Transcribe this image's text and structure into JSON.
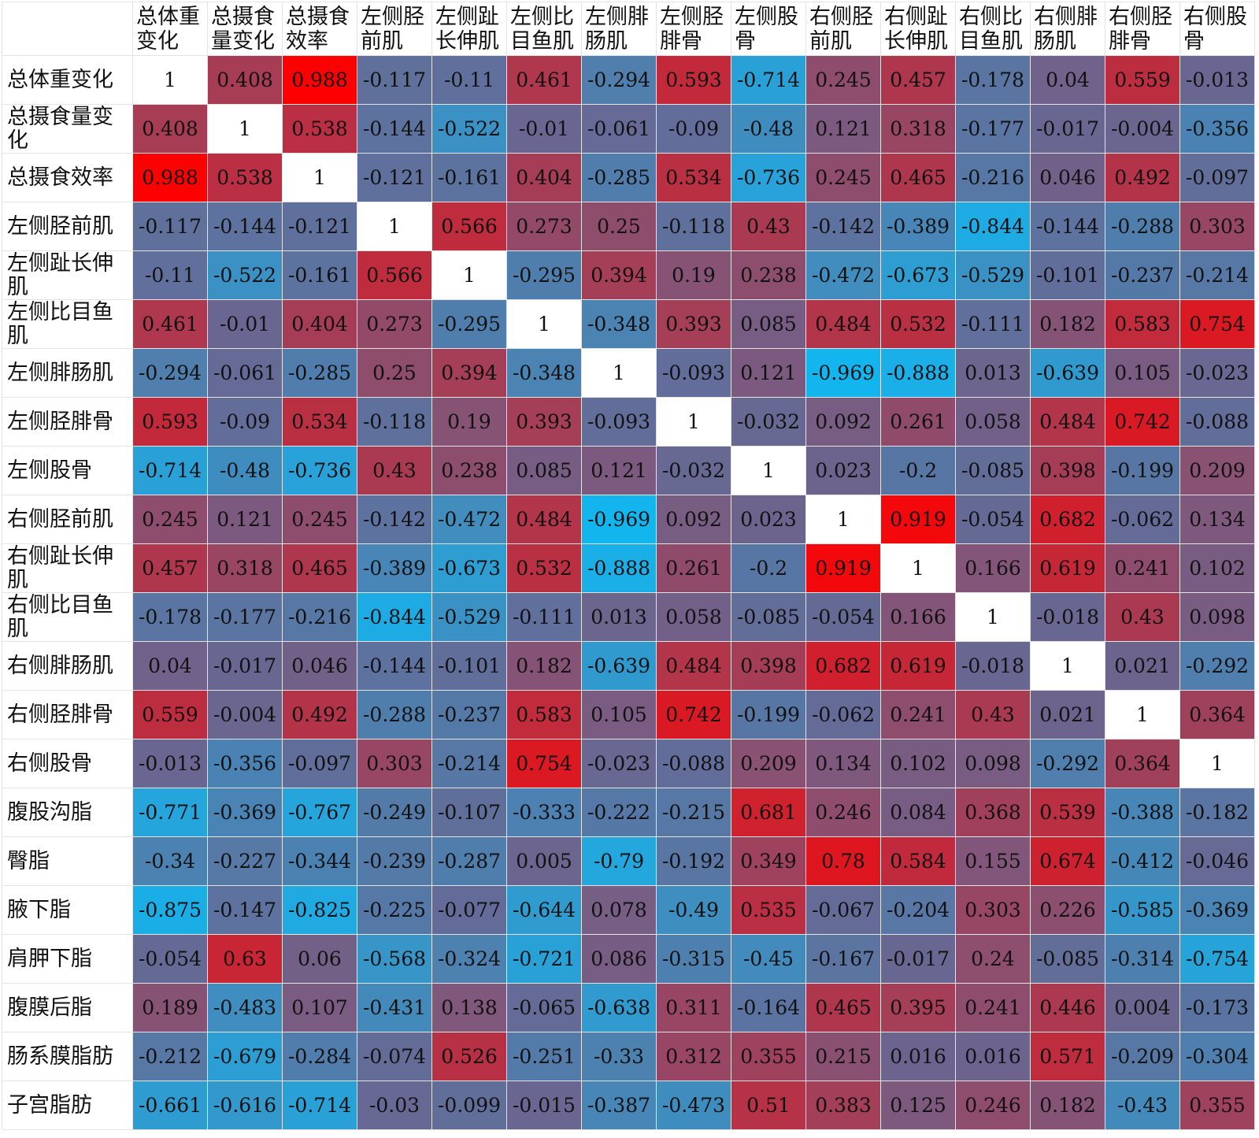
{
  "chart_data": {
    "type": "heatmap",
    "title": "",
    "colorscale": {
      "negative": "#10b8f2",
      "neutral": "#6a6690",
      "positive": "#ff0000",
      "diagonal": "#ffffff"
    },
    "vmin": -1,
    "vmax": 1,
    "columns": [
      "总体重变化",
      "总摄食量变化",
      "总摄食效率",
      "左侧胫前肌",
      "左侧趾长伸肌",
      "左侧比目鱼肌",
      "左侧腓肠肌",
      "左侧胫腓骨",
      "左侧股骨",
      "右侧胫前肌",
      "右侧趾长伸肌",
      "右侧比目鱼肌",
      "右侧腓肠肌",
      "右侧胫腓骨",
      "右侧股骨"
    ],
    "rows": [
      "总体重变化",
      "总摄食量变化",
      "总摄食效率",
      "左侧胫前肌",
      "左侧趾长伸肌",
      "左侧比目鱼肌",
      "左侧腓肠肌",
      "左侧胫腓骨",
      "左侧股骨",
      "右侧胫前肌",
      "右侧趾长伸肌",
      "右侧比目鱼肌",
      "右侧腓肠肌",
      "右侧胫腓骨",
      "右侧股骨",
      "腹股沟脂",
      "臀脂",
      "腋下脂",
      "肩胛下脂",
      "腹膜后脂",
      "肠系膜脂肪",
      "子宫脂肪"
    ],
    "values": [
      [
        "1",
        "0.408",
        "0.988",
        "-0.117",
        "-0.11",
        "0.461",
        "-0.294",
        "0.593",
        "-0.714",
        "0.245",
        "0.457",
        "-0.178",
        "0.04",
        "0.559",
        "-0.013"
      ],
      [
        "0.408",
        "1",
        "0.538",
        "-0.144",
        "-0.522",
        "-0.01",
        "-0.061",
        "-0.09",
        "-0.48",
        "0.121",
        "0.318",
        "-0.177",
        "-0.017",
        "-0.004",
        "-0.356"
      ],
      [
        "0.988",
        "0.538",
        "1",
        "-0.121",
        "-0.161",
        "0.404",
        "-0.285",
        "0.534",
        "-0.736",
        "0.245",
        "0.465",
        "-0.216",
        "0.046",
        "0.492",
        "-0.097"
      ],
      [
        "-0.117",
        "-0.144",
        "-0.121",
        "1",
        "0.566",
        "0.273",
        "0.25",
        "-0.118",
        "0.43",
        "-0.142",
        "-0.389",
        "-0.844",
        "-0.144",
        "-0.288",
        "0.303"
      ],
      [
        "-0.11",
        "-0.522",
        "-0.161",
        "0.566",
        "1",
        "-0.295",
        "0.394",
        "0.19",
        "0.238",
        "-0.472",
        "-0.673",
        "-0.529",
        "-0.101",
        "-0.237",
        "-0.214"
      ],
      [
        "0.461",
        "-0.01",
        "0.404",
        "0.273",
        "-0.295",
        "1",
        "-0.348",
        "0.393",
        "0.085",
        "0.484",
        "0.532",
        "-0.111",
        "0.182",
        "0.583",
        "0.754"
      ],
      [
        "-0.294",
        "-0.061",
        "-0.285",
        "0.25",
        "0.394",
        "-0.348",
        "1",
        "-0.093",
        "0.121",
        "-0.969",
        "-0.888",
        "0.013",
        "-0.639",
        "0.105",
        "-0.023"
      ],
      [
        "0.593",
        "-0.09",
        "0.534",
        "-0.118",
        "0.19",
        "0.393",
        "-0.093",
        "1",
        "-0.032",
        "0.092",
        "0.261",
        "0.058",
        "0.484",
        "0.742",
        "-0.088"
      ],
      [
        "-0.714",
        "-0.48",
        "-0.736",
        "0.43",
        "0.238",
        "0.085",
        "0.121",
        "-0.032",
        "1",
        "0.023",
        "-0.2",
        "-0.085",
        "0.398",
        "-0.199",
        "0.209"
      ],
      [
        "0.245",
        "0.121",
        "0.245",
        "-0.142",
        "-0.472",
        "0.484",
        "-0.969",
        "0.092",
        "0.023",
        "1",
        "0.919",
        "-0.054",
        "0.682",
        "-0.062",
        "0.134"
      ],
      [
        "0.457",
        "0.318",
        "0.465",
        "-0.389",
        "-0.673",
        "0.532",
        "-0.888",
        "0.261",
        "-0.2",
        "0.919",
        "1",
        "0.166",
        "0.619",
        "0.241",
        "0.102"
      ],
      [
        "-0.178",
        "-0.177",
        "-0.216",
        "-0.844",
        "-0.529",
        "-0.111",
        "0.013",
        "0.058",
        "-0.085",
        "-0.054",
        "0.166",
        "1",
        "-0.018",
        "0.43",
        "0.098"
      ],
      [
        "0.04",
        "-0.017",
        "0.046",
        "-0.144",
        "-0.101",
        "0.182",
        "-0.639",
        "0.484",
        "0.398",
        "0.682",
        "0.619",
        "-0.018",
        "1",
        "0.021",
        "-0.292"
      ],
      [
        "0.559",
        "-0.004",
        "0.492",
        "-0.288",
        "-0.237",
        "0.583",
        "0.105",
        "0.742",
        "-0.199",
        "-0.062",
        "0.241",
        "0.43",
        "0.021",
        "1",
        "0.364"
      ],
      [
        "-0.013",
        "-0.356",
        "-0.097",
        "0.303",
        "-0.214",
        "0.754",
        "-0.023",
        "-0.088",
        "0.209",
        "0.134",
        "0.102",
        "0.098",
        "-0.292",
        "0.364",
        "1"
      ],
      [
        "-0.771",
        "-0.369",
        "-0.767",
        "-0.249",
        "-0.107",
        "-0.333",
        "-0.222",
        "-0.215",
        "0.681",
        "0.246",
        "0.084",
        "0.368",
        "0.539",
        "-0.388",
        "-0.182"
      ],
      [
        "-0.34",
        "-0.227",
        "-0.344",
        "-0.239",
        "-0.287",
        "0.005",
        "-0.79",
        "-0.192",
        "0.349",
        "0.78",
        "0.584",
        "0.155",
        "0.674",
        "-0.412",
        "-0.046"
      ],
      [
        "-0.875",
        "-0.147",
        "-0.825",
        "-0.225",
        "-0.077",
        "-0.644",
        "0.078",
        "-0.49",
        "0.535",
        "-0.067",
        "-0.204",
        "0.303",
        "0.226",
        "-0.585",
        "-0.369"
      ],
      [
        "-0.054",
        "0.63",
        "0.06",
        "-0.568",
        "-0.324",
        "-0.721",
        "0.086",
        "-0.315",
        "-0.45",
        "-0.167",
        "-0.017",
        "0.24",
        "-0.085",
        "-0.314",
        "-0.754"
      ],
      [
        "0.189",
        "-0.483",
        "0.107",
        "-0.431",
        "0.138",
        "-0.065",
        "-0.638",
        "0.311",
        "-0.164",
        "0.465",
        "0.395",
        "0.241",
        "0.446",
        "0.004",
        "-0.173"
      ],
      [
        "-0.212",
        "-0.679",
        "-0.284",
        "-0.074",
        "0.526",
        "-0.251",
        "-0.33",
        "0.312",
        "0.355",
        "0.215",
        "0.016",
        "0.016",
        "0.571",
        "-0.209",
        "-0.304"
      ],
      [
        "-0.661",
        "-0.616",
        "-0.714",
        "-0.03",
        "-0.099",
        "-0.015",
        "-0.387",
        "-0.473",
        "0.51",
        "0.383",
        "0.125",
        "0.246",
        "0.182",
        "-0.43",
        "0.355"
      ]
    ]
  }
}
